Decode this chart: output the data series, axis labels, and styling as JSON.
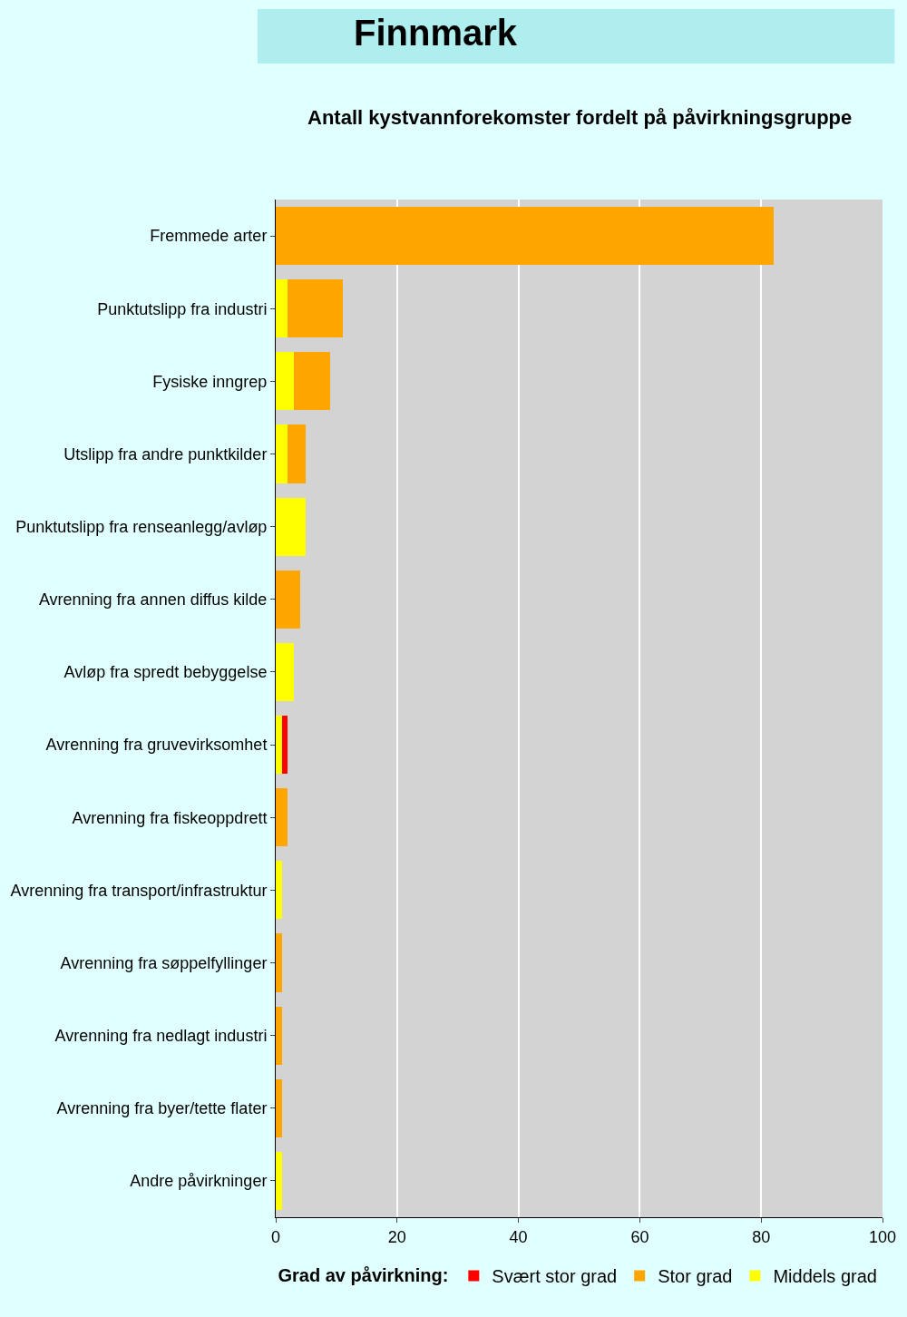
{
  "chart_data": {
    "type": "bar",
    "orientation": "horizontal",
    "stacked": true,
    "title": "Finnmark",
    "subtitle": "Antall kystvannforekomster fordelt på påvirkningsgruppe",
    "legend_title": "Grad av påvirkning:",
    "categories": [
      "Fremmede arter",
      "Punktutslipp fra industri",
      "Fysiske inngrep",
      "Utslipp fra andre punktkilder",
      "Punktutslipp fra renseanlegg/avløp",
      "Avrenning fra annen diffus kilde",
      "Avløp fra spredt bebyggelse",
      "Avrenning fra gruvevirksomhet",
      "Avrenning fra fiskeoppdrett",
      "Avrenning fra transport/infrastruktur",
      "Avrenning fra søppelfyllinger",
      "Avrenning fra nedlagt industri",
      "Avrenning fra byer/tette flater",
      "Andre påvirkninger"
    ],
    "series": [
      {
        "name": "Middels grad",
        "color": "#ffff00",
        "values": [
          null,
          2,
          3,
          2,
          5,
          null,
          3,
          1,
          null,
          1,
          null,
          null,
          null,
          1
        ]
      },
      {
        "name": "Stor grad",
        "color": "#ffa500",
        "values": [
          82,
          9,
          6,
          3,
          null,
          4,
          null,
          null,
          2,
          null,
          1,
          1,
          1,
          null
        ]
      },
      {
        "name": "Svært stor grad",
        "color": "#ff0000",
        "values": [
          null,
          null,
          null,
          null,
          null,
          null,
          null,
          1,
          null,
          null,
          null,
          null,
          null,
          null
        ]
      }
    ],
    "xlim": [
      0,
      100
    ],
    "xticks": [
      0,
      20,
      40,
      60,
      80,
      100
    ],
    "grid": "x",
    "legend": "bottom"
  }
}
